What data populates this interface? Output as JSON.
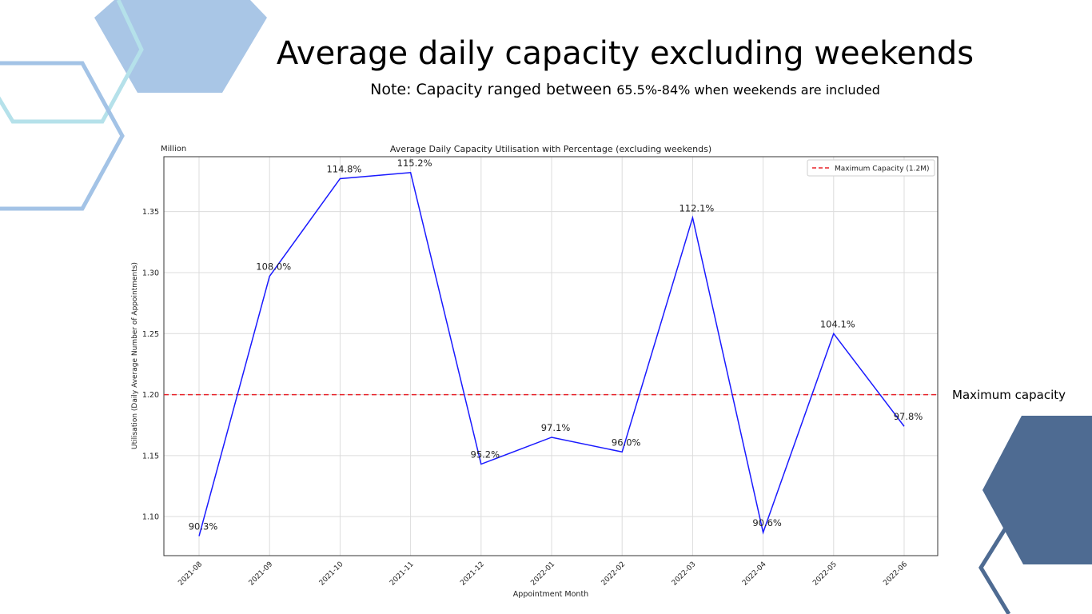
{
  "slide": {
    "title": "Average daily capacity excluding weekends",
    "note_main": "Note: Capacity ranged between ",
    "note_range": "65.5%-84% when weekends are included",
    "side_label": "Maximum capacity"
  },
  "colors": {
    "series": "#1a1aff",
    "max_line": "#e8232a",
    "hex_light": "#a9c6e6",
    "hex_outline_teal": "#b5e1ea",
    "hex_outline_blue": "#a3c3e6",
    "hex_dark": "#4e6b92"
  },
  "chart_data": {
    "type": "line",
    "title": "Average Daily Capacity Utilisation with Percentage (excluding weekends)",
    "unit_label": "Million",
    "xlabel": "Appointment Month",
    "ylabel": "Utilisation (Daily Average Number of Appointments)",
    "categories": [
      "2021-08",
      "2021-09",
      "2021-10",
      "2021-11",
      "2021-12",
      "2022-01",
      "2022-02",
      "2022-03",
      "2022-04",
      "2022-05",
      "2022-06"
    ],
    "values": [
      1.084,
      1.297,
      1.377,
      1.382,
      1.143,
      1.165,
      1.153,
      1.345,
      1.087,
      1.25,
      1.174
    ],
    "data_labels": [
      "90.3%",
      "108.0%",
      "114.8%",
      "115.2%",
      "95.2%",
      "97.1%",
      "96.0%",
      "112.1%",
      "90.6%",
      "104.1%",
      "97.8%"
    ],
    "yticks": [
      1.1,
      1.15,
      1.2,
      1.25,
      1.3,
      1.35
    ],
    "ytick_labels": [
      "1.10",
      "1.15",
      "1.20",
      "1.25",
      "1.30",
      "1.35"
    ],
    "ylim": [
      1.068,
      1.395
    ],
    "grid": true,
    "reference_line": {
      "value": 1.2,
      "label": "Maximum Capacity (1.2M)",
      "style": "dashed"
    },
    "legend_position": "top-right"
  }
}
